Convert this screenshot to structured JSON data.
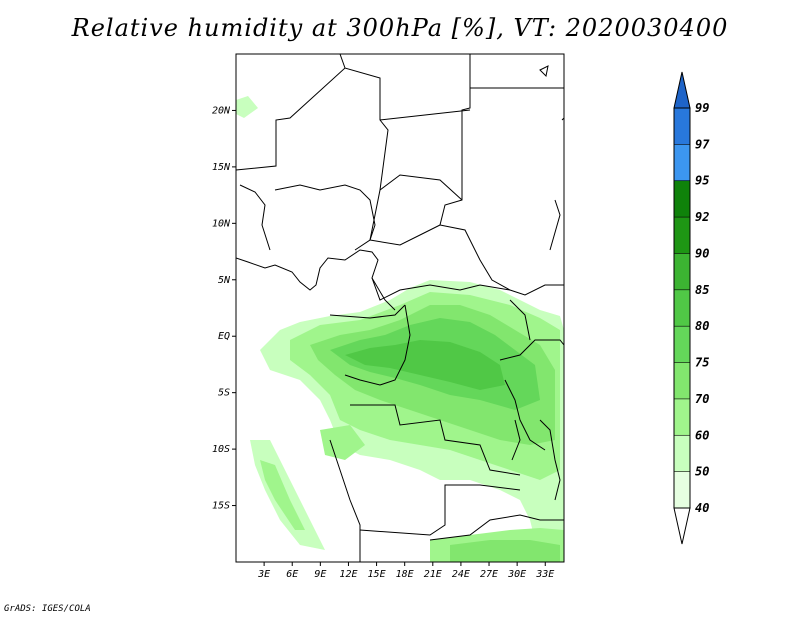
{
  "title": "Relative humidity at 300hPa [%], VT: 2020030400",
  "credit": "GrADS: IGES/COLA",
  "map": {
    "lon_range": [
      0,
      35
    ],
    "lat_range": [
      -20,
      25
    ],
    "lat_ticks": [
      {
        "lat": 20,
        "label": "20N"
      },
      {
        "lat": 15,
        "label": "15N"
      },
      {
        "lat": 10,
        "label": "10N"
      },
      {
        "lat": 5,
        "label": "5N"
      },
      {
        "lat": 0,
        "label": "EQ"
      },
      {
        "lat": -5,
        "label": "5S"
      },
      {
        "lat": -10,
        "label": "10S"
      },
      {
        "lat": -15,
        "label": "15S"
      }
    ],
    "lon_ticks": [
      {
        "lon": 3,
        "label": "3E"
      },
      {
        "lon": 6,
        "label": "6E"
      },
      {
        "lon": 9,
        "label": "9E"
      },
      {
        "lon": 12,
        "label": "12E"
      },
      {
        "lon": 15,
        "label": "15E"
      },
      {
        "lon": 18,
        "label": "18E"
      },
      {
        "lon": 21,
        "label": "21E"
      },
      {
        "lon": 24,
        "label": "24E"
      },
      {
        "lon": 27,
        "label": "27E"
      },
      {
        "lon": 30,
        "label": "30E"
      },
      {
        "lon": 33,
        "label": "33E"
      }
    ]
  },
  "colorbar": {
    "levels": [
      "40",
      "50",
      "60",
      "70",
      "75",
      "80",
      "85",
      "90",
      "92",
      "95",
      "97",
      "99"
    ],
    "colors": [
      "#e6ffe1",
      "#c8ffbe",
      "#a0f58c",
      "#82e66e",
      "#64d75a",
      "#50c846",
      "#3cb432",
      "#1e9614",
      "#0f820a",
      "#3c96f0",
      "#2878dc",
      "#1e64c8"
    ],
    "colors_note_lowest": "#ffffff"
  }
}
